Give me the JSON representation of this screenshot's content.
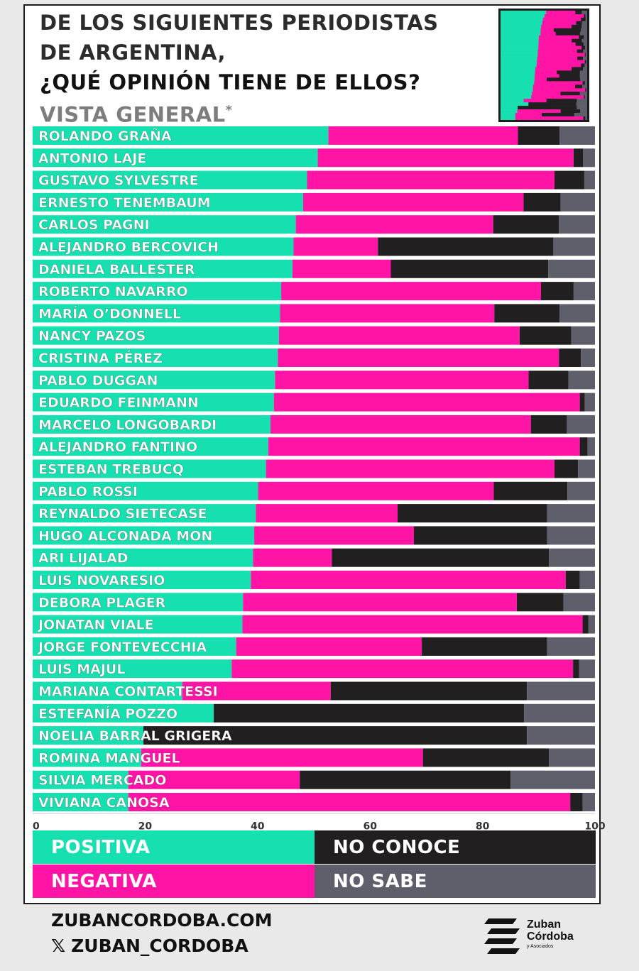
{
  "title": {
    "line1": "DE LOS SIGUIENTES PERIODISTAS",
    "line2": "DE ARGENTINA,",
    "line3": "¿QUÉ OPINIÓN TIENE DE ELLOS?",
    "line4": "VISTA GENERAL",
    "line4_mark": "*"
  },
  "colors": {
    "positiva": "#17e0b0",
    "negativa": "#ff14a6",
    "no_conoce": "#221f20",
    "no_sabe": "#5f5f6b"
  },
  "legend": {
    "positiva": "POSITIVA",
    "negativa": "NEGATIVA",
    "no_conoce": "NO CONOCE",
    "no_sabe": "NO SABE"
  },
  "footer": {
    "website": "ZUBANCORDOBA.COM",
    "x_icon": "𝕏",
    "social": "ZUBAN_CORDOBA",
    "logo_line1": "Zuban",
    "logo_line2": "Córdoba",
    "logo_line3": "y Asociados"
  },
  "chart_data": {
    "type": "bar",
    "orientation": "horizontal-stacked-100",
    "xlim": [
      0,
      100
    ],
    "xticks": [
      "0",
      "20",
      "40",
      "60",
      "80",
      "100"
    ],
    "series": [
      {
        "name": "POSITIVA",
        "values": [
          52.6,
          50.7,
          48.8,
          48.1,
          46.8,
          46.4,
          46.2,
          44.2,
          44.0,
          43.8,
          43.6,
          43.1,
          42.9,
          42.3,
          41.9,
          41.5,
          40.1,
          39.7,
          39.4,
          39.2,
          38.8,
          37.4,
          37.3,
          36.2,
          35.4,
          26.6,
          32.2,
          19.7,
          19.3,
          17.0,
          17.0
        ]
      },
      {
        "name": "NEGATIVA",
        "values": [
          33.7,
          45.5,
          44.0,
          39.2,
          35.1,
          15.0,
          17.5,
          46.2,
          38.1,
          42.8,
          50.0,
          45.1,
          54.4,
          46.3,
          55.4,
          51.3,
          41.9,
          25.2,
          28.4,
          14.0,
          56.0,
          48.7,
          60.5,
          33.0,
          60.7,
          26.4,
          0.0,
          0.0,
          50.1,
          30.5,
          78.6
        ]
      },
      {
        "name": "NO CONOCE",
        "values": [
          7.4,
          1.7,
          5.3,
          6.6,
          11.7,
          31.2,
          28.0,
          5.8,
          11.6,
          9.2,
          3.9,
          7.1,
          0.9,
          6.4,
          1.4,
          4.2,
          13.1,
          26.6,
          23.7,
          38.6,
          2.5,
          8.3,
          1.0,
          22.3,
          1.1,
          34.9,
          55.2,
          68.2,
          22.4,
          37.5,
          2.2
        ]
      },
      {
        "name": "NO SABE",
        "values": [
          6.3,
          2.1,
          1.9,
          6.1,
          6.4,
          7.4,
          8.3,
          3.8,
          6.3,
          4.2,
          2.5,
          4.7,
          1.8,
          5.0,
          1.3,
          3.0,
          4.9,
          8.5,
          8.5,
          8.2,
          2.7,
          5.6,
          1.2,
          8.5,
          2.8,
          12.1,
          12.6,
          12.1,
          8.2,
          15.0,
          2.2
        ]
      }
    ],
    "categories": [
      "ROLANDO GRAÑA",
      "ANTONIO LAJE",
      "GUSTAVO SYLVESTRE",
      "ERNESTO TENEMBAUM",
      "CARLOS PAGNI",
      "ALEJANDRO BERCOVICH",
      "DANIELA BALLESTER",
      "ROBERTO NAVARRO",
      "MARÍA O’DONNELL",
      "NANCY PAZOS",
      "CRISTINA PÉREZ",
      "PABLO DUGGAN",
      "EDUARDO FEINMANN",
      "MARCELO LONGOBARDI",
      "ALEJANDRO FANTINO",
      "ESTEBAN TREBUCQ",
      "PABLO ROSSI",
      "REYNALDO SIETECASE",
      "HUGO ALCONADA MON",
      "ARI LIJALAD",
      "LUIS NOVARESIO",
      "DEBORA PLAGER",
      "JONATAN VIALE",
      "JORGE FONTEVECCHIA",
      "LUIS MAJUL",
      "MARIANA CONTARTESSI",
      "ESTEFANÍA POZZO",
      "NOELIA BARRAL GRIGERA",
      "ROMINA MANGUEL",
      "SILVIA MERCADO",
      "VIVIANA CANOSA"
    ]
  }
}
